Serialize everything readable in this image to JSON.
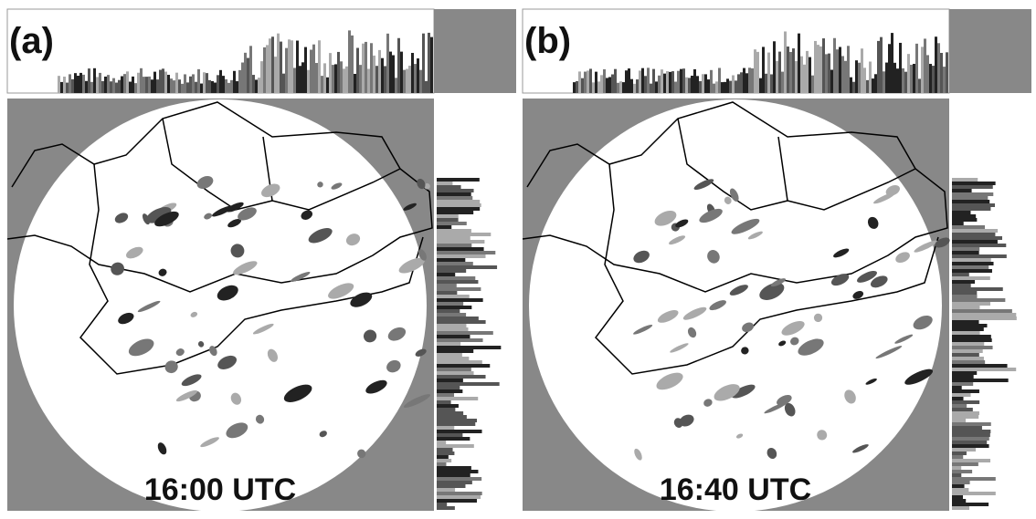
{
  "panels": [
    {
      "label": "(a)",
      "time": "16:00 UTC"
    },
    {
      "label": "(b)",
      "time": "16:40 UTC"
    }
  ]
}
